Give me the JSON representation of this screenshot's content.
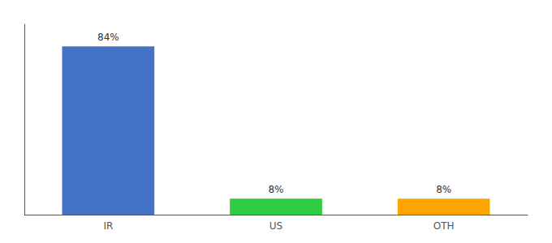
{
  "chart_data": {
    "type": "bar",
    "categories": [
      "IR",
      "US",
      "OTH"
    ],
    "values": [
      84,
      8,
      8
    ],
    "value_labels": [
      "84%",
      "8%",
      "8%"
    ],
    "colors": [
      "#4472c4",
      "#2ecc40",
      "#ffa500"
    ],
    "ylim": [
      0,
      95
    ],
    "grid": false,
    "data_labels": true,
    "tick_labels": "x"
  }
}
